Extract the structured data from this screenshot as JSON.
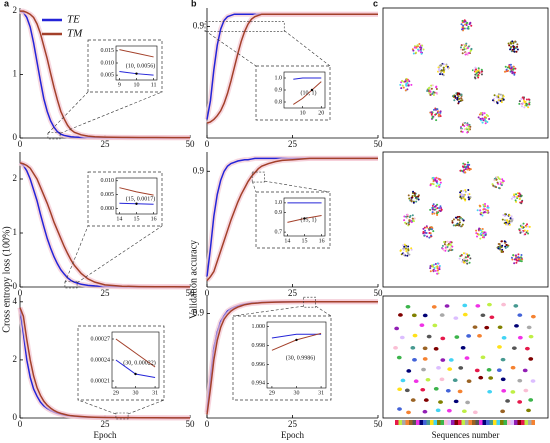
{
  "chart_data": [
    {
      "type": "line",
      "panel_label": "a",
      "legend": "upper center",
      "x": [
        0,
        1,
        2,
        3,
        4,
        5,
        6,
        7,
        8,
        9,
        10,
        11,
        12,
        13,
        14,
        15,
        16,
        18,
        20,
        22,
        25,
        30,
        35,
        40,
        45,
        50
      ],
      "series": [
        {
          "name": "TE",
          "color": "#2424d8",
          "values": [
            2.0,
            1.98,
            1.9,
            1.75,
            1.5,
            1.2,
            0.9,
            0.62,
            0.42,
            0.27,
            0.17,
            0.1,
            0.06,
            0.04,
            0.03,
            0.02,
            0.015,
            0.01,
            0.008,
            0.007,
            0.006,
            0.005,
            0.004,
            0.004,
            0.003,
            0.003
          ]
        },
        {
          "name": "TM",
          "color": "#a3402a",
          "values": [
            2.0,
            2.0,
            1.98,
            1.95,
            1.9,
            1.8,
            1.65,
            1.45,
            1.25,
            1.02,
            0.8,
            0.6,
            0.42,
            0.3,
            0.2,
            0.13,
            0.09,
            0.05,
            0.03,
            0.02,
            0.014,
            0.01,
            0.008,
            0.007,
            0.006,
            0.005
          ]
        }
      ],
      "xlim": [
        0,
        50
      ],
      "xticks": [
        0,
        25,
        50
      ],
      "ylim": [
        0,
        2.05
      ],
      "yticks": [
        0,
        1,
        2
      ],
      "inset": {
        "x": [
          9,
          10,
          11
        ],
        "xlim": [
          8.8,
          11.2
        ],
        "xticks": [
          9,
          10,
          11
        ],
        "ylim": [
          0.003,
          0.017
        ],
        "yticks": [
          0.005,
          {
            "value": 0.01,
            "label": "0.010"
          },
          0.015
        ],
        "annotation": "(10, 0.0056)",
        "series": [
          {
            "color": "#2424d8",
            "values": [
              0.0065,
              0.0056,
              0.005
            ]
          },
          {
            "color": "#a3402a",
            "values": [
              0.0155,
              0.014,
              0.0125
            ]
          }
        ]
      }
    },
    {
      "type": "line",
      "ylabel": "Cross entropy loss (100%)",
      "x": [
        0,
        1,
        2,
        3,
        4,
        5,
        6,
        7,
        8,
        9,
        10,
        11,
        12,
        13,
        14,
        15,
        16,
        18,
        20,
        22,
        25,
        30,
        35,
        40,
        45,
        50
      ],
      "series": [
        {
          "color": "#2424d8",
          "values": [
            2.3,
            2.25,
            2.15,
            2.0,
            1.8,
            1.6,
            1.35,
            1.12,
            0.9,
            0.72,
            0.56,
            0.43,
            0.32,
            0.24,
            0.17,
            0.12,
            0.09,
            0.05,
            0.03,
            0.02,
            0.01,
            0.005,
            0.003,
            0.002,
            0.002,
            0.002
          ]
        },
        {
          "color": "#a3402a",
          "values": [
            2.3,
            2.28,
            2.25,
            2.2,
            2.1,
            2.0,
            1.85,
            1.7,
            1.55,
            1.38,
            1.2,
            1.05,
            0.9,
            0.75,
            0.62,
            0.5,
            0.4,
            0.25,
            0.15,
            0.09,
            0.04,
            0.015,
            0.008,
            0.005,
            0.004,
            0.003
          ]
        }
      ],
      "xlim": [
        0,
        50
      ],
      "xticks": [
        0,
        25,
        50
      ],
      "ylim": [
        0,
        2.5
      ],
      "yticks": [
        0,
        1,
        2
      ],
      "inset": {
        "x": [
          14,
          15,
          16
        ],
        "xlim": [
          13.8,
          16.2
        ],
        "xticks": [
          14,
          15,
          16
        ],
        "ylim": [
          -0.002,
          0.011
        ],
        "yticks": [
          {
            "value": 0,
            "label": "0.000"
          },
          0.005,
          {
            "value": 0.01,
            "label": "0.010"
          }
        ],
        "annotation": "(15, 0.0017)",
        "series": [
          {
            "color": "#2424d8",
            "values": [
              0.0019,
              0.0017,
              0.0015
            ]
          },
          {
            "color": "#a3402a",
            "values": [
              0.0075,
              0.006,
              0.0048
            ]
          }
        ]
      }
    },
    {
      "type": "line",
      "xlabel": "Epoch",
      "x": [
        0,
        1,
        2,
        3,
        4,
        5,
        6,
        7,
        8,
        9,
        10,
        11,
        12,
        13,
        14,
        15,
        16,
        18,
        20,
        22,
        25,
        30,
        35,
        40,
        45,
        50
      ],
      "series": [
        {
          "color": "#2424d8",
          "values": [
            3.8,
            2.9,
            2.0,
            1.4,
            1.0,
            0.75,
            0.55,
            0.42,
            0.33,
            0.26,
            0.2,
            0.16,
            0.13,
            0.1,
            0.08,
            0.07,
            0.06,
            0.04,
            0.03,
            0.02,
            0.015,
            0.01,
            0.008,
            0.006,
            0.005,
            0.004
          ]
        },
        {
          "color": "#a3402a",
          "values": [
            3.8,
            3.5,
            2.7,
            2.0,
            1.45,
            1.05,
            0.78,
            0.58,
            0.44,
            0.34,
            0.26,
            0.2,
            0.16,
            0.13,
            0.1,
            0.08,
            0.07,
            0.05,
            0.035,
            0.025,
            0.018,
            0.012,
            0.009,
            0.007,
            0.006,
            0.005
          ]
        }
      ],
      "xlim": [
        0,
        50
      ],
      "xticks": [
        0,
        25,
        50
      ],
      "ylim": [
        0,
        4.2
      ],
      "yticks": [
        0,
        2,
        4
      ],
      "inset": {
        "x": [
          29,
          30,
          31
        ],
        "xlim": [
          28.8,
          31.2
        ],
        "xticks": [
          29,
          30,
          31
        ],
        "ylim": [
          0.0002,
          0.00028
        ],
        "yticks": [
          0.00021,
          0.00024,
          0.00027
        ],
        "annotation": "(30, 0.00022)",
        "series": [
          {
            "color": "#2424d8",
            "values": [
              0.00024,
              0.00022,
              0.000215
            ]
          },
          {
            "color": "#a3402a",
            "values": [
              0.00027,
              0.00025,
              0.00023
            ]
          }
        ]
      }
    },
    {
      "type": "line",
      "panel_label": "b",
      "x": [
        0,
        1,
        2,
        3,
        4,
        5,
        6,
        7,
        8,
        9,
        10,
        11,
        12,
        13,
        14,
        15,
        16,
        18,
        20,
        22,
        25,
        30,
        35,
        40,
        45,
        50
      ],
      "series": [
        {
          "color": "#2424d8",
          "values": [
            0.15,
            0.3,
            0.55,
            0.75,
            0.88,
            0.95,
            0.98,
            0.99,
            1,
            1,
            1,
            1,
            1,
            1,
            1,
            1,
            1,
            1,
            1,
            1,
            1,
            1,
            1,
            1,
            1,
            1
          ]
        },
        {
          "color": "#a3402a",
          "values": [
            0.12,
            0.13,
            0.15,
            0.18,
            0.22,
            0.28,
            0.36,
            0.46,
            0.57,
            0.68,
            0.78,
            0.86,
            0.92,
            0.96,
            0.98,
            0.99,
            1,
            1,
            1,
            1,
            1,
            1,
            1,
            1,
            1,
            1
          ]
        }
      ],
      "xlim": [
        0,
        50
      ],
      "xticks": [
        0,
        25,
        50
      ],
      "ylim": [
        0,
        1.05
      ],
      "yticks": [
        0.9
      ],
      "inset": {
        "x": [
          5,
          10,
          15,
          20
        ],
        "xlim": [
          0,
          22
        ],
        "xticks": [
          10,
          20
        ],
        "ylim": [
          0.75,
          1.05
        ],
        "yticks": [
          0.8,
          0.9,
          {
            "value": 1,
            "label": "1.0"
          }
        ],
        "annotation": "(10, 1)",
        "series": [
          {
            "color": "#2424d8",
            "values": [
              0.99,
              1,
              1,
              1
            ]
          },
          {
            "color": "#a3402a",
            "values": [
              0.78,
              0.83,
              0.9,
              0.97
            ]
          }
        ]
      }
    },
    {
      "type": "line",
      "ylabel": "Validation accuracy",
      "x": [
        0,
        1,
        2,
        3,
        4,
        5,
        6,
        7,
        8,
        9,
        10,
        11,
        12,
        13,
        14,
        15,
        16,
        18,
        20,
        22,
        25,
        30,
        35,
        40,
        45,
        50
      ],
      "series": [
        {
          "color": "#2424d8",
          "values": [
            0.08,
            0.3,
            0.55,
            0.72,
            0.83,
            0.9,
            0.94,
            0.96,
            0.97,
            0.98,
            0.985,
            0.99,
            0.99,
            0.995,
            1,
            1,
            1,
            1,
            1,
            1,
            1,
            1,
            1,
            1,
            1,
            1
          ]
        },
        {
          "color": "#a3402a",
          "values": [
            0.05,
            0.08,
            0.12,
            0.2,
            0.28,
            0.36,
            0.44,
            0.52,
            0.59,
            0.66,
            0.72,
            0.77,
            0.82,
            0.86,
            0.89,
            0.92,
            0.94,
            0.96,
            0.975,
            0.985,
            0.99,
            1,
            1,
            1,
            1,
            1
          ]
        }
      ],
      "xlim": [
        0,
        50
      ],
      "xticks": [
        0,
        25,
        50
      ],
      "ylim": [
        0,
        1.05
      ],
      "yticks": [
        0.9
      ],
      "inset": {
        "x": [
          14,
          15,
          16
        ],
        "xlim": [
          13.8,
          16.2
        ],
        "xticks": [
          14,
          15,
          16
        ],
        "ylim": [
          0.66,
          1.05
        ],
        "yticks": [
          0.7,
          0.9,
          {
            "value": 1,
            "label": "1.0"
          }
        ],
        "annotation": "(15, 1)",
        "series": [
          {
            "color": "#2424d8",
            "values": [
              1,
              1,
              1
            ]
          },
          {
            "color": "#a3402a",
            "values": [
              0.8,
              0.84,
              0.87
            ]
          }
        ]
      }
    },
    {
      "type": "line",
      "xlabel": "Epoch",
      "x": [
        0,
        1,
        2,
        3,
        4,
        5,
        6,
        7,
        8,
        9,
        10,
        11,
        12,
        13,
        14,
        15,
        16,
        18,
        20,
        22,
        25,
        30,
        35,
        40,
        45,
        50
      ],
      "series": [
        {
          "color": "#2424d8",
          "values": [
            0.05,
            0.35,
            0.6,
            0.74,
            0.83,
            0.88,
            0.92,
            0.94,
            0.955,
            0.965,
            0.975,
            0.98,
            0.985,
            0.99,
            0.99,
            0.993,
            0.995,
            0.997,
            0.998,
            0.999,
            1,
            1,
            1,
            1,
            1,
            1
          ]
        },
        {
          "color": "#a3402a",
          "values": [
            0.03,
            0.25,
            0.5,
            0.67,
            0.78,
            0.85,
            0.89,
            0.92,
            0.94,
            0.955,
            0.965,
            0.975,
            0.98,
            0.985,
            0.988,
            0.99,
            0.993,
            0.995,
            0.997,
            0.998,
            0.999,
            1,
            1,
            1,
            1,
            1
          ]
        }
      ],
      "xlim": [
        0,
        50
      ],
      "xticks": [
        0,
        25,
        50
      ],
      "ylim": [
        0,
        1.05
      ],
      "yticks": [
        0.9
      ],
      "inset": {
        "x": [
          29,
          30,
          31
        ],
        "xlim": [
          28.8,
          31.2
        ],
        "xticks": [
          29,
          30,
          31
        ],
        "ylim": [
          0.9935,
          1.0005
        ],
        "yticks": [
          0.994,
          0.996,
          0.998,
          {
            "value": 1,
            "label": "1.000"
          }
        ],
        "annotation": "(30, 0.9986)",
        "series": [
          {
            "color": "#2424d8",
            "values": [
              0.9988,
              0.9992,
              0.9992
            ]
          },
          {
            "color": "#a3402a",
            "values": [
              0.9975,
              0.9986,
              0.9993
            ]
          }
        ]
      }
    },
    {
      "type": "embedding",
      "panel_label": "c"
    },
    {
      "type": "embedding"
    },
    {
      "type": "embedding",
      "xlabel": "Sequences number"
    }
  ]
}
